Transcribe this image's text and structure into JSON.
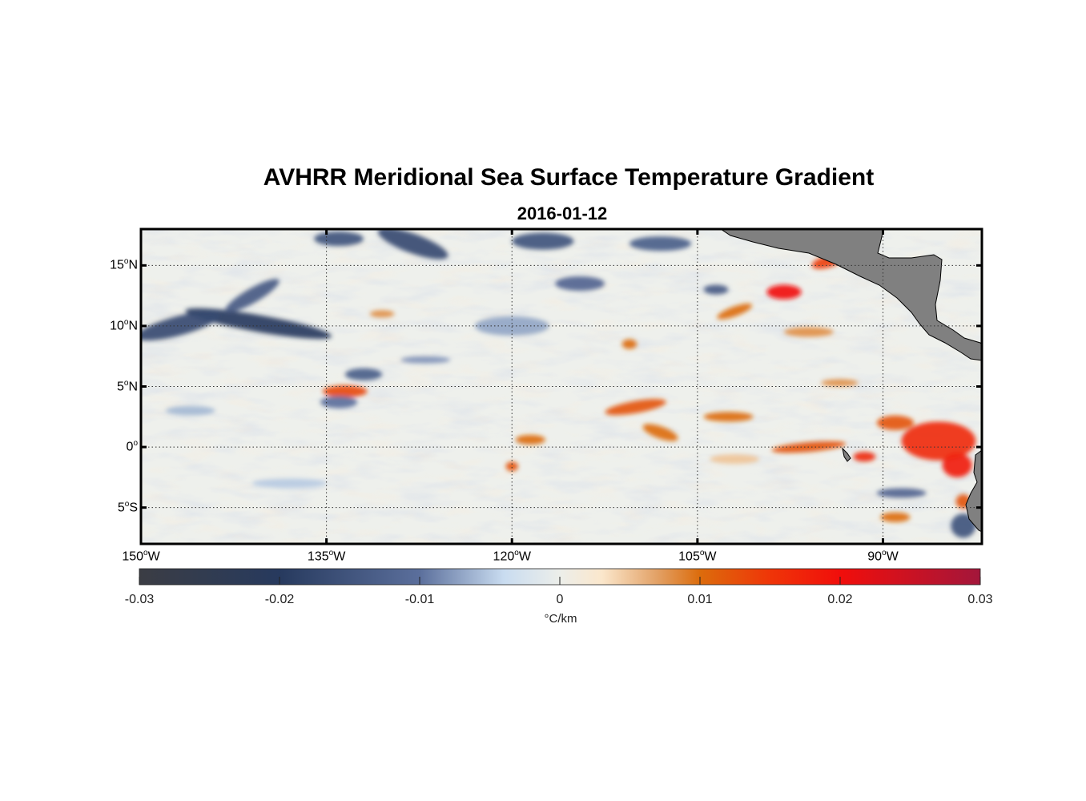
{
  "title": "AVHRR Meridional Sea Surface Temperature Gradient",
  "subtitle": "2016-01-12",
  "map": {
    "lon_range": [
      -150,
      -82
    ],
    "lat_range": [
      -8,
      18
    ],
    "lat_ticks": [
      {
        "value": 15,
        "num": "15",
        "hemi": "N"
      },
      {
        "value": 10,
        "num": "10",
        "hemi": "N"
      },
      {
        "value": 5,
        "num": "5",
        "hemi": "N"
      },
      {
        "value": 0,
        "num": "0",
        "hemi": ""
      },
      {
        "value": -5,
        "num": "5",
        "hemi": "S"
      }
    ],
    "lon_ticks": [
      {
        "value": -150,
        "num": "150",
        "hemi": "W"
      },
      {
        "value": -135,
        "num": "135",
        "hemi": "W"
      },
      {
        "value": -120,
        "num": "120",
        "hemi": "W"
      },
      {
        "value": -105,
        "num": "105",
        "hemi": "W"
      },
      {
        "value": -90,
        "num": "90",
        "hemi": "W"
      }
    ],
    "land_color": "#808080",
    "features": [
      {
        "lon": -140.5,
        "lat": 10.2,
        "rlon": 6.0,
        "rlat": 0.7,
        "value": -0.02,
        "rot": 10
      },
      {
        "lon": -147.0,
        "lat": 10.0,
        "rlon": 3.5,
        "rlat": 0.8,
        "value": -0.017,
        "rot": -15
      },
      {
        "lon": -141.0,
        "lat": 12.5,
        "rlon": 2.5,
        "rlat": 0.6,
        "value": -0.014,
        "rot": -30
      },
      {
        "lon": -133.5,
        "lat": 4.6,
        "rlon": 1.8,
        "rlat": 0.5,
        "value": 0.013,
        "rot": 0
      },
      {
        "lon": -132.0,
        "lat": 6.0,
        "rlon": 1.5,
        "rlat": 0.5,
        "value": -0.013,
        "rot": 0
      },
      {
        "lon": -134.0,
        "lat": 3.7,
        "rlon": 1.5,
        "rlat": 0.5,
        "value": -0.01,
        "rot": 0
      },
      {
        "lon": -128.0,
        "lat": 16.8,
        "rlon": 3.0,
        "rlat": 0.8,
        "value": -0.017,
        "rot": 20
      },
      {
        "lon": -134.0,
        "lat": 17.2,
        "rlon": 2.0,
        "rlat": 0.6,
        "value": -0.015,
        "rot": 0
      },
      {
        "lon": -117.5,
        "lat": 17.0,
        "rlon": 2.5,
        "rlat": 0.7,
        "value": -0.015,
        "rot": 0
      },
      {
        "lon": -108.0,
        "lat": 16.8,
        "rlon": 2.5,
        "rlat": 0.6,
        "value": -0.013,
        "rot": 0
      },
      {
        "lon": -114.5,
        "lat": 13.5,
        "rlon": 2.0,
        "rlat": 0.6,
        "value": -0.012,
        "rot": 0
      },
      {
        "lon": -98.0,
        "lat": 12.8,
        "rlon": 1.4,
        "rlat": 0.6,
        "value": 0.02,
        "rot": 0
      },
      {
        "lon": -94.5,
        "lat": 15.3,
        "rlon": 1.3,
        "rlat": 0.5,
        "value": 0.014,
        "rot": -15
      },
      {
        "lon": -102.0,
        "lat": 11.2,
        "rlon": 1.5,
        "rlat": 0.4,
        "value": 0.01,
        "rot": -20
      },
      {
        "lon": -110.0,
        "lat": 3.3,
        "rlon": 2.5,
        "rlat": 0.5,
        "value": 0.012,
        "rot": -10
      },
      {
        "lon": -102.5,
        "lat": 2.5,
        "rlon": 2.0,
        "rlat": 0.4,
        "value": 0.01,
        "rot": 0
      },
      {
        "lon": -108.0,
        "lat": 1.2,
        "rlon": 1.5,
        "rlat": 0.5,
        "value": 0.01,
        "rot": 20
      },
      {
        "lon": -118.5,
        "lat": 0.6,
        "rlon": 1.2,
        "rlat": 0.4,
        "value": 0.01,
        "rot": 0
      },
      {
        "lon": -96.0,
        "lat": 0.0,
        "rlon": 3.0,
        "rlat": 0.4,
        "value": 0.012,
        "rot": -5
      },
      {
        "lon": -85.5,
        "lat": 0.5,
        "rlon": 3.0,
        "rlat": 1.6,
        "value": 0.016,
        "rot": 0
      },
      {
        "lon": -84.0,
        "lat": -1.5,
        "rlon": 1.2,
        "rlat": 1.0,
        "value": 0.018,
        "rot": 0
      },
      {
        "lon": -89.0,
        "lat": 2.0,
        "rlon": 1.5,
        "rlat": 0.6,
        "value": 0.012,
        "rot": 0
      },
      {
        "lon": -91.5,
        "lat": -0.8,
        "rlon": 0.9,
        "rlat": 0.4,
        "value": 0.016,
        "rot": 0
      },
      {
        "lon": -88.5,
        "lat": -3.8,
        "rlon": 2.0,
        "rlat": 0.4,
        "value": -0.012,
        "rot": 0
      },
      {
        "lon": -89.0,
        "lat": -5.8,
        "rlon": 1.2,
        "rlat": 0.4,
        "value": 0.01,
        "rot": 0
      },
      {
        "lon": -83.5,
        "lat": -6.5,
        "rlon": 1.0,
        "rlat": 1.0,
        "value": -0.015,
        "rot": 0
      },
      {
        "lon": -83.5,
        "lat": -4.5,
        "rlon": 0.6,
        "rlat": 0.6,
        "value": 0.012,
        "rot": 0
      },
      {
        "lon": -110.5,
        "lat": 8.5,
        "rlon": 0.6,
        "rlat": 0.4,
        "value": 0.01,
        "rot": 0
      },
      {
        "lon": -130.5,
        "lat": 11.0,
        "rlon": 1.0,
        "rlat": 0.3,
        "value": 0.008,
        "rot": 0
      },
      {
        "lon": -120.0,
        "lat": 10.0,
        "rlon": 3.0,
        "rlat": 0.8,
        "value": -0.007,
        "rot": 0
      },
      {
        "lon": -103.5,
        "lat": 13.0,
        "rlon": 1.0,
        "rlat": 0.4,
        "value": -0.014,
        "rot": 0
      },
      {
        "lon": -96.0,
        "lat": 9.5,
        "rlon": 2.0,
        "rlat": 0.4,
        "value": 0.008,
        "rot": 0
      },
      {
        "lon": -93.5,
        "lat": 5.3,
        "rlon": 1.5,
        "rlat": 0.3,
        "value": 0.008,
        "rot": 0
      },
      {
        "lon": -120.0,
        "lat": -1.6,
        "rlon": 0.5,
        "rlat": 0.4,
        "value": 0.012,
        "rot": 0
      },
      {
        "lon": -138.0,
        "lat": -3.0,
        "rlon": 3.0,
        "rlat": 0.4,
        "value": -0.005,
        "rot": 0
      },
      {
        "lon": -127.0,
        "lat": 7.2,
        "rlon": 2.0,
        "rlat": 0.3,
        "value": -0.008,
        "rot": 0
      },
      {
        "lon": -146.0,
        "lat": 3.0,
        "rlon": 2.0,
        "rlat": 0.4,
        "value": -0.006,
        "rot": 0
      },
      {
        "lon": -102.0,
        "lat": -1.0,
        "rlon": 2.0,
        "rlat": 0.4,
        "value": 0.005,
        "rot": 0
      }
    ]
  },
  "colorbar": {
    "min": -0.03,
    "max": 0.03,
    "ticks": [
      "-0.03",
      "-0.02",
      "-0.01",
      "0",
      "0.01",
      "0.02",
      "0.03"
    ],
    "unit": "°C/km",
    "stops": [
      {
        "value": -0.03,
        "color": "#3b3d44"
      },
      {
        "value": -0.02,
        "color": "#273a5e"
      },
      {
        "value": -0.01,
        "color": "#5b6f9c"
      },
      {
        "value": -0.004,
        "color": "#c9dcf0"
      },
      {
        "value": 0,
        "color": "#eceeea"
      },
      {
        "value": 0.003,
        "color": "#fbe7cc"
      },
      {
        "value": 0.007,
        "color": "#e2a064"
      },
      {
        "value": 0.01,
        "color": "#dc6c0c"
      },
      {
        "value": 0.015,
        "color": "#ef3508"
      },
      {
        "value": 0.02,
        "color": "#f10e0b"
      },
      {
        "value": 0.03,
        "color": "#a3163b"
      }
    ]
  }
}
